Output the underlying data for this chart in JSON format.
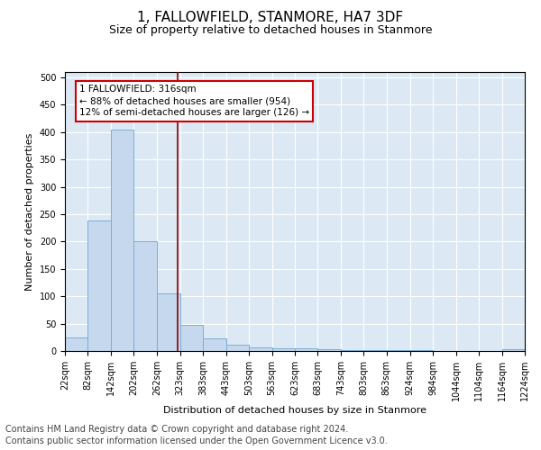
{
  "title": "1, FALLOWFIELD, STANMORE, HA7 3DF",
  "subtitle": "Size of property relative to detached houses in Stanmore",
  "xlabel": "Distribution of detached houses by size in Stanmore",
  "ylabel": "Number of detached properties",
  "bar_color": "#c5d8ed",
  "bar_edge_color": "#7bafd4",
  "background_color": "#dce9f5",
  "grid_color": "#ffffff",
  "vline_value": 316,
  "vline_color": "#8b0000",
  "annotation_text": "1 FALLOWFIELD: 316sqm\n← 88% of detached houses are smaller (954)\n12% of semi-detached houses are larger (126) →",
  "annotation_box_color": "white",
  "annotation_box_edge_color": "#cc0000",
  "bin_edges": [
    22,
    82,
    142,
    202,
    262,
    323,
    383,
    443,
    503,
    563,
    623,
    683,
    743,
    803,
    863,
    924,
    984,
    1044,
    1104,
    1164,
    1224
  ],
  "bin_counts": [
    25,
    238,
    405,
    200,
    105,
    48,
    23,
    12,
    7,
    5,
    5,
    3,
    2,
    1,
    1,
    1,
    0,
    0,
    0,
    4
  ],
  "ylim": [
    0,
    510
  ],
  "yticks": [
    0,
    50,
    100,
    150,
    200,
    250,
    300,
    350,
    400,
    450,
    500
  ],
  "footer_line1": "Contains HM Land Registry data © Crown copyright and database right 2024.",
  "footer_line2": "Contains public sector information licensed under the Open Government Licence v3.0.",
  "title_fontsize": 11,
  "subtitle_fontsize": 9,
  "footer_fontsize": 7,
  "tick_fontsize": 7,
  "label_fontsize": 8,
  "annotation_fontsize": 7.5
}
